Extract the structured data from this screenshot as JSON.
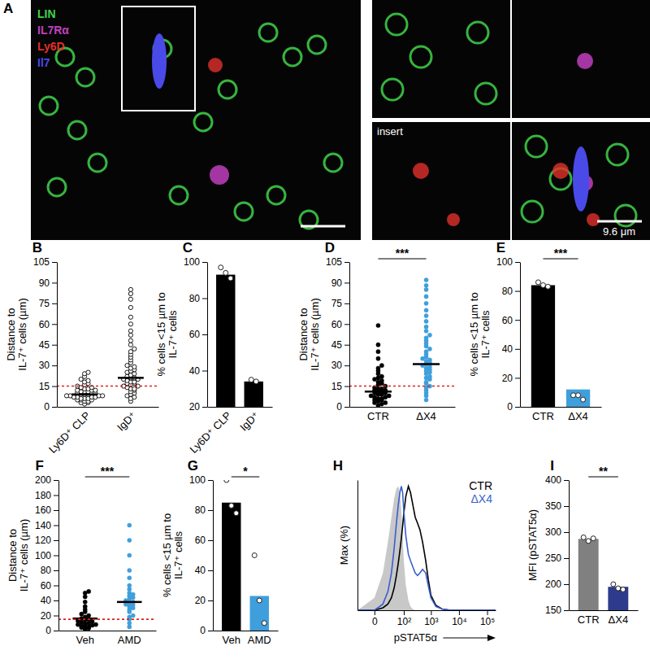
{
  "chart_data": [
    {
      "type": "image",
      "title": "A",
      "channels": [
        {
          "name": "LIN",
          "color": "#3fd34a"
        },
        {
          "name": "IL7Rα",
          "color": "#c040c0"
        },
        {
          "name": "Ly6D",
          "color": "#e0302a"
        },
        {
          "name": "Il7",
          "color": "#4a4ae8"
        }
      ],
      "inset_label": "insert",
      "scale_label": "9.6 μm"
    },
    {
      "type": "strip",
      "title": "B",
      "categories": [
        "Ly6D⁺ CLP",
        "IgD⁺"
      ],
      "values": [
        [
          2,
          3,
          3,
          4,
          4,
          5,
          5,
          5,
          6,
          6,
          6,
          7,
          7,
          7,
          7,
          8,
          8,
          8,
          8,
          9,
          9,
          9,
          10,
          10,
          10,
          11,
          11,
          11,
          12,
          12,
          12,
          13,
          13,
          14,
          14,
          15,
          16,
          17,
          18,
          19,
          20,
          22,
          24,
          25
        ],
        [
          4,
          6,
          7,
          8,
          9,
          10,
          11,
          12,
          13,
          13,
          14,
          15,
          15,
          16,
          17,
          17,
          18,
          18,
          19,
          20,
          20,
          21,
          21,
          22,
          23,
          24,
          25,
          26,
          27,
          28,
          29,
          30,
          32,
          34,
          36,
          38,
          40,
          42,
          45,
          48,
          52,
          55,
          60,
          65,
          72,
          78,
          82,
          85
        ]
      ],
      "means": [
        9,
        21
      ],
      "colors": [
        "#000000",
        "#000000"
      ],
      "marker": "open-circle",
      "threshold": 15,
      "ylabel": [
        "Distance to",
        "IL-7⁺ cells (µm)"
      ],
      "ylim": [
        0,
        105
      ],
      "yticks": [
        0,
        15,
        30,
        45,
        60,
        75,
        90,
        105
      ]
    },
    {
      "type": "bar",
      "title": "C",
      "categories": [
        "Ly6D⁺ CLP",
        "IgD⁺"
      ],
      "values": [
        93,
        34
      ],
      "points": [
        [
          97,
          94,
          91
        ],
        [
          35,
          34
        ]
      ],
      "colors": [
        "#000000",
        "#000000"
      ],
      "ylabel": [
        "% cells <15 µm to",
        "IL-7⁺ cells"
      ],
      "ylim": [
        20,
        100
      ],
      "yticks": [
        20,
        40,
        60,
        80,
        100
      ]
    },
    {
      "type": "strip",
      "title": "D",
      "categories": [
        "CTR",
        "ΔX4"
      ],
      "values": [
        [
          1,
          2,
          3,
          3,
          4,
          5,
          5,
          6,
          6,
          7,
          7,
          8,
          8,
          9,
          9,
          10,
          10,
          11,
          11,
          12,
          12,
          13,
          13,
          14,
          15,
          16,
          17,
          18,
          19,
          20,
          21,
          22,
          24,
          26,
          28,
          30,
          35,
          40,
          45,
          59
        ],
        [
          5,
          8,
          10,
          12,
          14,
          15,
          17,
          18,
          20,
          21,
          22,
          24,
          25,
          26,
          27,
          28,
          29,
          30,
          31,
          32,
          33,
          34,
          35,
          36,
          38,
          40,
          42,
          44,
          46,
          48,
          50,
          52,
          55,
          58,
          62,
          66,
          70,
          75,
          80,
          85,
          88,
          92
        ]
      ],
      "means": [
        11,
        31
      ],
      "colors": [
        "#000000",
        "#3f9fdc"
      ],
      "marker": "circle",
      "threshold": 15,
      "annotation": "***",
      "ylabel": [
        "Distance to",
        "IL-7⁺ cells (µm)"
      ],
      "ylim": [
        0,
        105
      ],
      "yticks": [
        0,
        15,
        30,
        45,
        60,
        75,
        90,
        105
      ]
    },
    {
      "type": "bar",
      "title": "E",
      "categories": [
        "CTR",
        "ΔX4"
      ],
      "values": [
        84,
        12
      ],
      "points": [
        [
          86,
          84,
          83
        ],
        [
          8,
          8,
          5
        ]
      ],
      "colors": [
        "#000000",
        "#3f9fdc"
      ],
      "annotation": "***",
      "ylabel": [
        "% cells <15 µm to",
        "IL-7⁺ cells"
      ],
      "ylim": [
        0,
        100
      ],
      "yticks": [
        0,
        20,
        40,
        60,
        80,
        100
      ]
    },
    {
      "type": "strip",
      "title": "F",
      "categories": [
        "Veh",
        "AMD"
      ],
      "values": [
        [
          2,
          3,
          4,
          5,
          5,
          6,
          7,
          8,
          8,
          9,
          10,
          11,
          12,
          13,
          14,
          15,
          16,
          18,
          20,
          22,
          25,
          28,
          32,
          38,
          45,
          50,
          52
        ],
        [
          5,
          10,
          15,
          18,
          20,
          25,
          28,
          30,
          32,
          34,
          35,
          36,
          38,
          40,
          42,
          44,
          46,
          48,
          50,
          55,
          60,
          70,
          80,
          100,
          120,
          140
        ]
      ],
      "means": [
        16,
        38
      ],
      "colors": [
        "#000000",
        "#3f9fdc"
      ],
      "marker": "circle",
      "threshold": 15,
      "annotation": "***",
      "ylabel": [
        "Distance to",
        "IL-7⁺ cells (µm)"
      ],
      "ylim": [
        0,
        200
      ],
      "yticks": [
        0,
        20,
        40,
        60,
        80,
        100,
        120,
        140,
        160,
        180,
        200
      ]
    },
    {
      "type": "bar",
      "title": "G",
      "categories": [
        "Veh",
        "AMD"
      ],
      "values": [
        85,
        23
      ],
      "points": [
        [
          100,
          83,
          78
        ],
        [
          50,
          20,
          5
        ]
      ],
      "colors": [
        "#000000",
        "#3f9fdc"
      ],
      "annotation": "*",
      "ylabel": [
        "% cells <15 µm to",
        "IL-7⁺ cells"
      ],
      "ylim": [
        0,
        100
      ],
      "yticks": [
        0,
        20,
        40,
        60,
        80,
        100
      ]
    },
    {
      "type": "line",
      "title": "H",
      "log": "x",
      "legend": "upper right",
      "tick_labels": "x",
      "x": [
        -30,
        0,
        10,
        20,
        30,
        40,
        50,
        60,
        70,
        80,
        90,
        100,
        120,
        150,
        180,
        220,
        270,
        330,
        400,
        500,
        650,
        800,
        1000,
        1500,
        2500,
        5000,
        200000
      ],
      "series": [
        {
          "type": "area",
          "color": "#c8c8c8",
          "values": [
            0,
            10,
            30,
            55,
            75,
            90,
            98,
            100,
            95,
            80,
            60,
            40,
            20,
            8,
            3,
            1,
            0,
            0,
            0,
            0,
            0,
            0,
            0,
            0,
            0,
            0,
            0
          ]
        },
        {
          "name": "CTR",
          "type": "line",
          "color": "#000000",
          "values": [
            0,
            0,
            2,
            5,
            10,
            18,
            28,
            38,
            48,
            58,
            68,
            78,
            92,
            100,
            95,
            85,
            75,
            70,
            65,
            55,
            40,
            25,
            12,
            4,
            1,
            0,
            0
          ]
        },
        {
          "name": "ΔX4",
          "type": "line",
          "color": "#3a5fcd",
          "values": [
            0,
            0,
            5,
            15,
            30,
            50,
            70,
            85,
            95,
            100,
            95,
            80,
            60,
            45,
            40,
            35,
            30,
            28,
            30,
            33,
            30,
            20,
            10,
            3,
            1,
            0,
            0
          ]
        }
      ],
      "xlabel": "pSTAT5α",
      "ylabel": [
        "Max (%)"
      ],
      "xlim": [
        -30,
        200000
      ],
      "ylim": [
        0,
        105
      ],
      "xticks": [
        0,
        {
          "value": 100,
          "label": "10²"
        },
        {
          "value": 1000,
          "label": "10³"
        },
        {
          "value": 10000,
          "label": "10⁴"
        },
        {
          "value": 100000,
          "label": "10⁵"
        }
      ]
    },
    {
      "type": "bar",
      "title": "I",
      "categories": [
        "CTR",
        "ΔX4"
      ],
      "values": [
        287,
        195
      ],
      "points": [
        [
          290,
          283,
          288
        ],
        [
          200,
          192,
          190
        ]
      ],
      "colors": [
        "#808080",
        "#2e3a8c"
      ],
      "annotation": "**",
      "ylabel": [
        "MFI (pSTAT5α)"
      ],
      "ylim": [
        150,
        400
      ],
      "yticks": [
        150,
        200,
        250,
        300,
        350,
        400
      ]
    }
  ]
}
